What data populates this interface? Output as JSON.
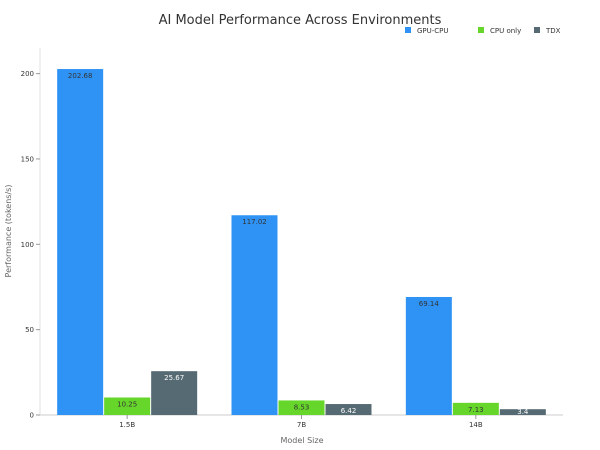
{
  "chart_data": {
    "type": "bar",
    "title": "AI Model Performance Across Environments",
    "xlabel": "Model Size",
    "ylabel": "Performance (tokens/s)",
    "categories": [
      "1.5B",
      "7B",
      "14B"
    ],
    "ylim": [
      0,
      215
    ],
    "yticks": [
      0,
      50,
      100,
      150,
      200
    ],
    "grid": false,
    "legend_position": "top-right",
    "series": [
      {
        "name": "GPU-CPU",
        "color": "#2f93f5",
        "values": [
          202.68,
          117.02,
          69.14
        ],
        "labels": [
          "202.68",
          "117.02",
          "69.14"
        ]
      },
      {
        "name": "CPU only",
        "color": "#66d62a",
        "values": [
          10.25,
          8.53,
          7.13
        ],
        "labels": [
          "10.25",
          "8.53",
          "7.13"
        ]
      },
      {
        "name": "TDX",
        "color": "#566a73",
        "values": [
          25.67,
          6.42,
          3.4
        ],
        "labels": [
          "25.67",
          "6.42",
          "3.4"
        ]
      }
    ]
  }
}
